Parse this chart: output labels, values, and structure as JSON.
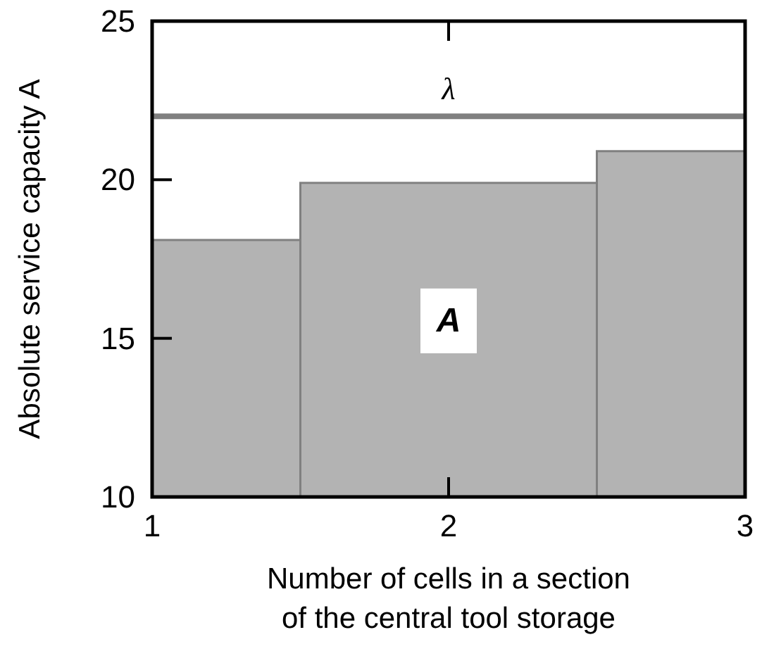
{
  "chart_data": {
    "type": "histogram",
    "xlabel": "Number of cells in a section\nof the central tool storage",
    "ylabel": "Absolute service capacity A",
    "bins": [
      1,
      1.5,
      2.5,
      3
    ],
    "values": [
      18.1,
      19.9,
      20.9
    ],
    "color": "#b3b3b3",
    "xlim": [
      1,
      3
    ],
    "xticks": [
      1,
      2,
      3
    ],
    "ylim": [
      10,
      25
    ],
    "yticks": [
      10,
      15,
      20,
      25
    ],
    "ref_lines": [
      {
        "axis": "y",
        "value": 22,
        "label": "λ",
        "color": "#808080"
      }
    ],
    "annotations": [
      "A"
    ],
    "grid": false
  }
}
